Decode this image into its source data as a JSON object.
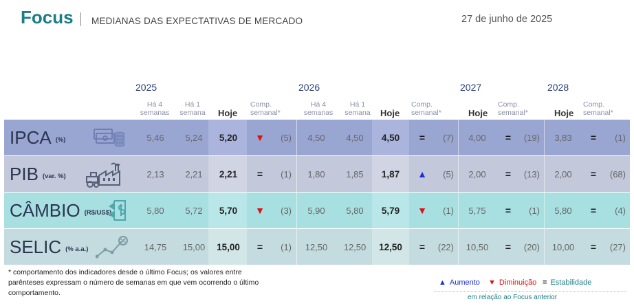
{
  "header": {
    "title": "Focus",
    "subtitle": "MEDIANAS DAS EXPECTATIVAS DE MERCADO",
    "date": "27 de junho de 2025"
  },
  "years": [
    "2025",
    "2026",
    "2027",
    "2028"
  ],
  "columns": {
    "ha4": "Há 4 semanas",
    "ha1": "Há 1 semana",
    "hoje": "Hoje",
    "comp": "Comp. semanal*"
  },
  "colors": {
    "ipca": "#9aa6d2",
    "pib": "#c3c8da",
    "cambio": "#a8dfe1",
    "selic": "#c4dcdf",
    "teal": "#1b7e86"
  },
  "indicators": [
    {
      "name": "IPCA",
      "unit": "(%)",
      "icon": "money-stack-icon",
      "y2025": {
        "ha4": "5,46",
        "ha1": "5,24",
        "hoje": "5,20",
        "trend": "down",
        "count": "(5)"
      },
      "y2026": {
        "ha4": "4,50",
        "ha1": "4,50",
        "hoje": "4,50",
        "trend": "equal",
        "count": "(7)"
      },
      "y2027": {
        "hoje": "4,00",
        "trend": "equal",
        "count": "(19)"
      },
      "y2028": {
        "hoje": "3,83",
        "trend": "equal",
        "count": "(1)"
      }
    },
    {
      "name": "PIB",
      "unit": "(var. %)",
      "icon": "factory-tractor-icon",
      "y2025": {
        "ha4": "2,13",
        "ha1": "2,21",
        "hoje": "2,21",
        "trend": "equal",
        "count": "(1)"
      },
      "y2026": {
        "ha4": "1,80",
        "ha1": "1,85",
        "hoje": "1,87",
        "trend": "up",
        "count": "(5)"
      },
      "y2027": {
        "hoje": "2,00",
        "trend": "equal",
        "count": "(13)"
      },
      "y2028": {
        "hoje": "2,00",
        "trend": "equal",
        "count": "(68)"
      }
    },
    {
      "name": "CÂMBIO",
      "unit": "(R$/US$)",
      "icon": "currency-exchange-icon",
      "y2025": {
        "ha4": "5,80",
        "ha1": "5,72",
        "hoje": "5,70",
        "trend": "down",
        "count": "(3)"
      },
      "y2026": {
        "ha4": "5,90",
        "ha1": "5,80",
        "hoje": "5,79",
        "trend": "down",
        "count": "(1)"
      },
      "y2027": {
        "hoje": "5,75",
        "trend": "equal",
        "count": "(1)"
      },
      "y2028": {
        "hoje": "5,80",
        "trend": "equal",
        "count": "(4)"
      }
    },
    {
      "name": "SELIC",
      "unit": "(% a.a.)",
      "icon": "rate-chart-icon",
      "y2025": {
        "ha4": "14,75",
        "ha1": "15,00",
        "hoje": "15,00",
        "trend": "equal",
        "count": "(1)"
      },
      "y2026": {
        "ha4": "12,50",
        "ha1": "12,50",
        "hoje": "12,50",
        "trend": "equal",
        "count": "(22)"
      },
      "y2027": {
        "hoje": "10,50",
        "trend": "equal",
        "count": "(20)"
      },
      "y2028": {
        "hoje": "10,00",
        "trend": "equal",
        "count": "(27)"
      }
    }
  ],
  "footnote": "* comportamento dos indicadores desde o último Focus; os valores entre parênteses expressam o número de semanas em que vem ocorrendo o último comportamento.",
  "legend": {
    "up_label": "Aumento",
    "down_label": "Diminuição",
    "equal_label": "Estabilidade",
    "sub": "em relação ao Focus anterior"
  },
  "symbols": {
    "up": "▲",
    "down": "▼",
    "equal": "="
  }
}
